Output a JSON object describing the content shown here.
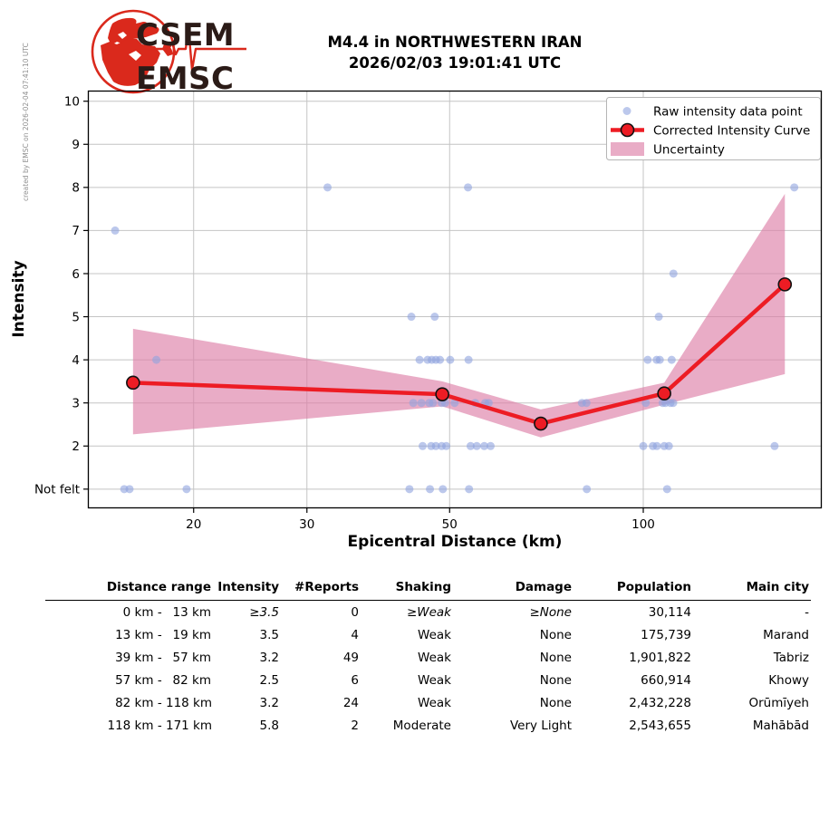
{
  "meta": {
    "created_by": "created by EMSC on 2026-02-04 07:41:10 UTC"
  },
  "logo": {
    "top": "CSEM",
    "bottom": "EMSC"
  },
  "header": {
    "title_line1": "M4.4 in NORTHWESTERN IRAN",
    "title_line2": "2026/02/03 19:01:41 UTC"
  },
  "chart_data": {
    "type": "line",
    "xlabel": "Epicentral Distance (km)",
    "ylabel": "Intensity",
    "x_scale": "log",
    "xlim": [
      13.7,
      189
    ],
    "ylim": [
      0.55,
      10.25
    ],
    "grid": true,
    "legend_position": "upper right",
    "x_ticks": [
      {
        "value": 20,
        "label": "20"
      },
      {
        "value": 30,
        "label": "30"
      },
      {
        "value": 50,
        "label": "50"
      },
      {
        "value": 100,
        "label": "100"
      }
    ],
    "y_ticks": [
      {
        "value": 10,
        "label": "10"
      },
      {
        "value": 9,
        "label": "9"
      },
      {
        "value": 8,
        "label": "8"
      },
      {
        "value": 7,
        "label": "7"
      },
      {
        "value": 6,
        "label": "6"
      },
      {
        "value": 5,
        "label": "5"
      },
      {
        "value": 4,
        "label": "4"
      },
      {
        "value": 3,
        "label": "3"
      },
      {
        "value": 2,
        "label": "2"
      },
      {
        "value": 1,
        "label": "Not felt"
      }
    ],
    "legend": [
      {
        "type": "dot",
        "label": "Raw intensity data point"
      },
      {
        "type": "line",
        "label": "Corrected Intensity Curve"
      },
      {
        "type": "band",
        "label": "Uncertainty"
      }
    ],
    "series": [
      {
        "name": "Corrected Intensity Curve",
        "points": [
          [
            16.1,
            3.47
          ],
          [
            48.7,
            3.2
          ],
          [
            69.3,
            2.52
          ],
          [
            107.8,
            3.22
          ],
          [
            166,
            5.75
          ]
        ]
      }
    ],
    "uncertainty_band": [
      [
        16.1,
        2.27,
        4.72
      ],
      [
        48.7,
        2.92,
        3.5
      ],
      [
        69.3,
        2.2,
        2.85
      ],
      [
        107.8,
        2.96,
        3.47
      ],
      [
        166,
        3.67,
        7.85
      ]
    ],
    "raw_points": [
      [
        32.3,
        8
      ],
      [
        53.4,
        8
      ],
      [
        171.7,
        8
      ],
      [
        15.1,
        7
      ],
      [
        111.4,
        6
      ],
      [
        43.6,
        5
      ],
      [
        47.4,
        5
      ],
      [
        105.7,
        5
      ],
      [
        17.5,
        4
      ],
      [
        44.9,
        4
      ],
      [
        46.2,
        4
      ],
      [
        46.9,
        4
      ],
      [
        47.6,
        4
      ],
      [
        48.3,
        4
      ],
      [
        50.1,
        4
      ],
      [
        53.5,
        4
      ],
      [
        101.6,
        4
      ],
      [
        104.9,
        4
      ],
      [
        106.1,
        4
      ],
      [
        110.7,
        4
      ],
      [
        43.9,
        3
      ],
      [
        45.2,
        3
      ],
      [
        46.5,
        3
      ],
      [
        47.1,
        3
      ],
      [
        48.6,
        3
      ],
      [
        49.2,
        3
      ],
      [
        50.9,
        3
      ],
      [
        54.8,
        3
      ],
      [
        56.8,
        3
      ],
      [
        57.5,
        3
      ],
      [
        80.3,
        3
      ],
      [
        81.6,
        3
      ],
      [
        100.9,
        3
      ],
      [
        107.2,
        3
      ],
      [
        108.3,
        3
      ],
      [
        110.2,
        3
      ],
      [
        111.3,
        3
      ],
      [
        45.4,
        2
      ],
      [
        46.8,
        2
      ],
      [
        47.6,
        2
      ],
      [
        48.6,
        2
      ],
      [
        49.4,
        2
      ],
      [
        53.9,
        2
      ],
      [
        55.1,
        2
      ],
      [
        56.6,
        2
      ],
      [
        57.9,
        2
      ],
      [
        100.0,
        2
      ],
      [
        103.5,
        2
      ],
      [
        105.0,
        2
      ],
      [
        107.8,
        2
      ],
      [
        109.6,
        2
      ],
      [
        160.0,
        2
      ],
      [
        15.6,
        1
      ],
      [
        15.9,
        1
      ],
      [
        19.5,
        1
      ],
      [
        43.3,
        1
      ],
      [
        46.6,
        1
      ],
      [
        48.8,
        1
      ],
      [
        53.6,
        1
      ],
      [
        81.7,
        1
      ],
      [
        108.9,
        1
      ]
    ],
    "colors": {
      "raw": "#8fa3e0",
      "curve": "#ed1c24",
      "band": "#dd7fa8",
      "grid": "#c4c4c4",
      "logo_red": "#da291c",
      "logo_text": "#2b1b17"
    }
  },
  "table": {
    "headers": [
      "Distance range",
      "Intensity",
      "#Reports",
      "Shaking",
      "Damage",
      "Population",
      "Main city"
    ],
    "rows": [
      {
        "from": "0 km",
        "to": "13 km",
        "intensity": "≥3.5",
        "reports": "0",
        "shaking": "≥Weak",
        "damage": "≥None",
        "population": "30,114",
        "city": "-",
        "min_row": true
      },
      {
        "from": "13 km",
        "to": "19 km",
        "intensity": "3.5",
        "reports": "4",
        "shaking": "Weak",
        "damage": "None",
        "population": "175,739",
        "city": "Marand",
        "min_row": false
      },
      {
        "from": "39 km",
        "to": "57 km",
        "intensity": "3.2",
        "reports": "49",
        "shaking": "Weak",
        "damage": "None",
        "population": "1,901,822",
        "city": "Tabriz",
        "min_row": false
      },
      {
        "from": "57 km",
        "to": "82 km",
        "intensity": "2.5",
        "reports": "6",
        "shaking": "Weak",
        "damage": "None",
        "population": "660,914",
        "city": "Khowy",
        "min_row": false
      },
      {
        "from": "82 km",
        "to": "118 km",
        "intensity": "3.2",
        "reports": "24",
        "shaking": "Weak",
        "damage": "None",
        "population": "2,432,228",
        "city": "Orūmīyeh",
        "min_row": false
      },
      {
        "from": "118 km",
        "to": "171 km",
        "intensity": "5.8",
        "reports": "2",
        "shaking": "Moderate",
        "damage": "Very Light",
        "population": "2,543,655",
        "city": "Mahābād",
        "min_row": false
      }
    ]
  }
}
